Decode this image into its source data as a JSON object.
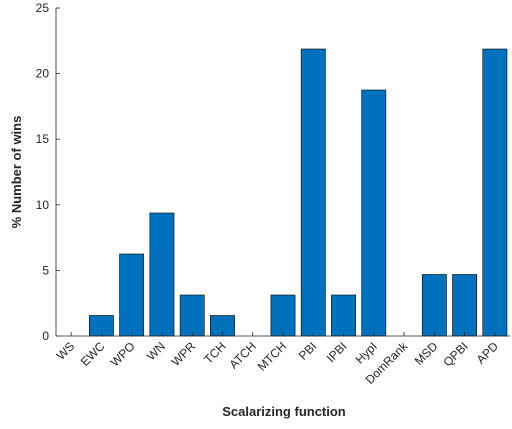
{
  "chart_data": {
    "type": "bar",
    "categories": [
      "WS",
      "EWC",
      "WPO",
      "WN",
      "WPR",
      "TCH",
      "ATCH",
      "MTCH",
      "PBI",
      "IPBI",
      "HypI",
      "DomRank",
      "MSD",
      "QPBI",
      "APD"
    ],
    "values": [
      0,
      1.5625,
      6.25,
      9.375,
      3.125,
      1.5625,
      0,
      3.125,
      21.875,
      3.125,
      18.75,
      0,
      4.6875,
      4.6875,
      21.875
    ],
    "xlabel": "Scalarizing function",
    "ylabel": "% Number of wins",
    "ylim": [
      0,
      25
    ],
    "yticks": [
      0,
      5,
      10,
      15,
      20,
      25
    ],
    "grid": false,
    "bar_color": "#0072BD",
    "axis_color": "#262626"
  }
}
